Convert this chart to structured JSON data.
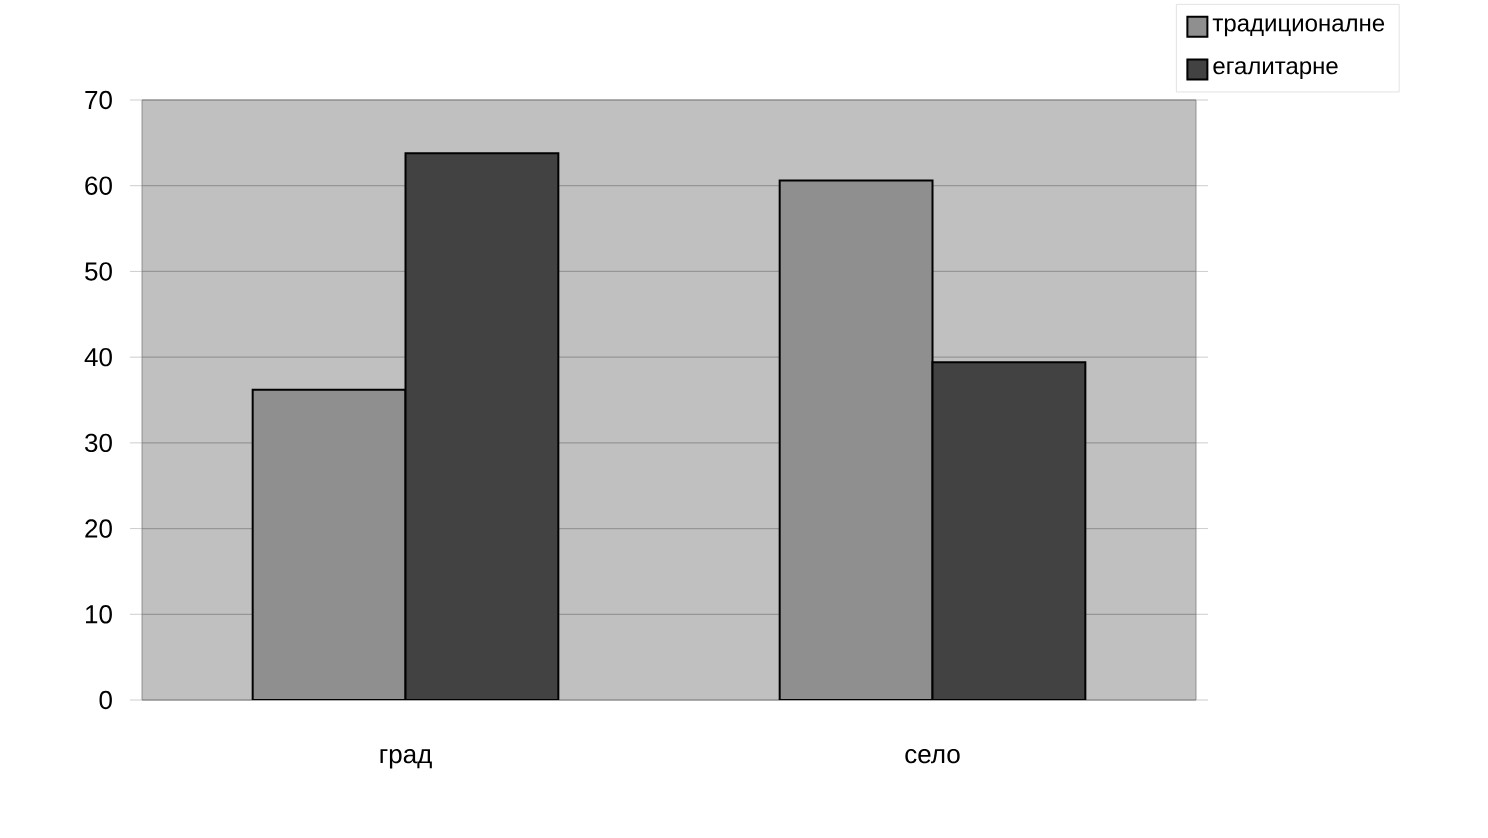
{
  "chart_data": {
    "type": "bar",
    "categories": [
      "град",
      "село"
    ],
    "series": [
      {
        "name": "традиционалне",
        "color": "#8f8f8f",
        "values": [
          36.2,
          60.6
        ]
      },
      {
        "name": "егалитарне",
        "color": "#424242",
        "values": [
          63.8,
          39.4
        ]
      }
    ],
    "ylim": [
      0,
      70
    ],
    "yticks": [
      0,
      10,
      20,
      30,
      40,
      50,
      60,
      70
    ],
    "grid": "y",
    "legend": "top right"
  }
}
